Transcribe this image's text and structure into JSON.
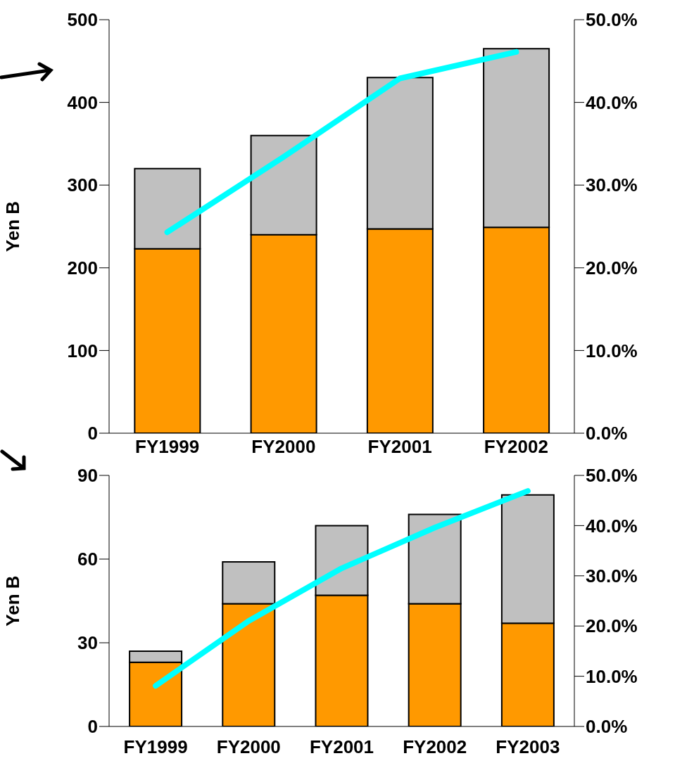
{
  "chart_data": [
    {
      "type": "bar",
      "stacked": true,
      "categories": [
        "FY1999",
        "FY2000",
        "FY2001",
        "FY2002"
      ],
      "ylabel": "Yen B",
      "ylim": [
        0,
        500
      ],
      "yticks": [
        0,
        100,
        200,
        300,
        400,
        500
      ],
      "y2lim": [
        0,
        50
      ],
      "y2ticks": [
        {
          "value": 0,
          "label": "0.0%"
        },
        {
          "value": 10,
          "label": "10.0%"
        },
        {
          "value": 20,
          "label": "20.0%"
        },
        {
          "value": 30,
          "label": "30.0%"
        },
        {
          "value": 40,
          "label": "40.0%"
        },
        {
          "value": 50,
          "label": "50.0%"
        }
      ],
      "grid": false,
      "legend": false,
      "series": [
        {
          "color": "#ff9900",
          "values": [
            223,
            240,
            247,
            249
          ]
        },
        {
          "color": "#c0c0c0",
          "values": [
            97,
            120,
            183,
            216
          ]
        },
        {
          "type": "line",
          "axis": "y2",
          "color": "#00ffff",
          "marker": "none",
          "values": [
            24.3,
            33.4,
            42.9,
            46.1
          ]
        }
      ]
    },
    {
      "type": "bar",
      "stacked": true,
      "categories": [
        "FY1999",
        "FY2000",
        "FY2001",
        "FY2002",
        "FY2003"
      ],
      "ylabel": "Yen B",
      "ylim": [
        0,
        90
      ],
      "yticks": [
        0,
        30,
        60,
        90
      ],
      "y2lim": [
        0,
        50
      ],
      "y2ticks": [
        {
          "value": 0,
          "label": "0.0%"
        },
        {
          "value": 10,
          "label": "10.0%"
        },
        {
          "value": 20,
          "label": "20.0%"
        },
        {
          "value": 30,
          "label": "30.0%"
        },
        {
          "value": 40,
          "label": "40.0%"
        },
        {
          "value": 50,
          "label": "50.0%"
        }
      ],
      "grid": false,
      "legend": false,
      "series": [
        {
          "color": "#ff9900",
          "values": [
            23,
            44,
            47,
            44,
            37
          ]
        },
        {
          "color": "#c0c0c0",
          "values": [
            4,
            15,
            25,
            32,
            46
          ]
        },
        {
          "type": "line",
          "axis": "y2",
          "color": "#00ffff",
          "marker": "none",
          "values": [
            8.1,
            21,
            31.5,
            39.6,
            46.9
          ]
        }
      ]
    }
  ]
}
